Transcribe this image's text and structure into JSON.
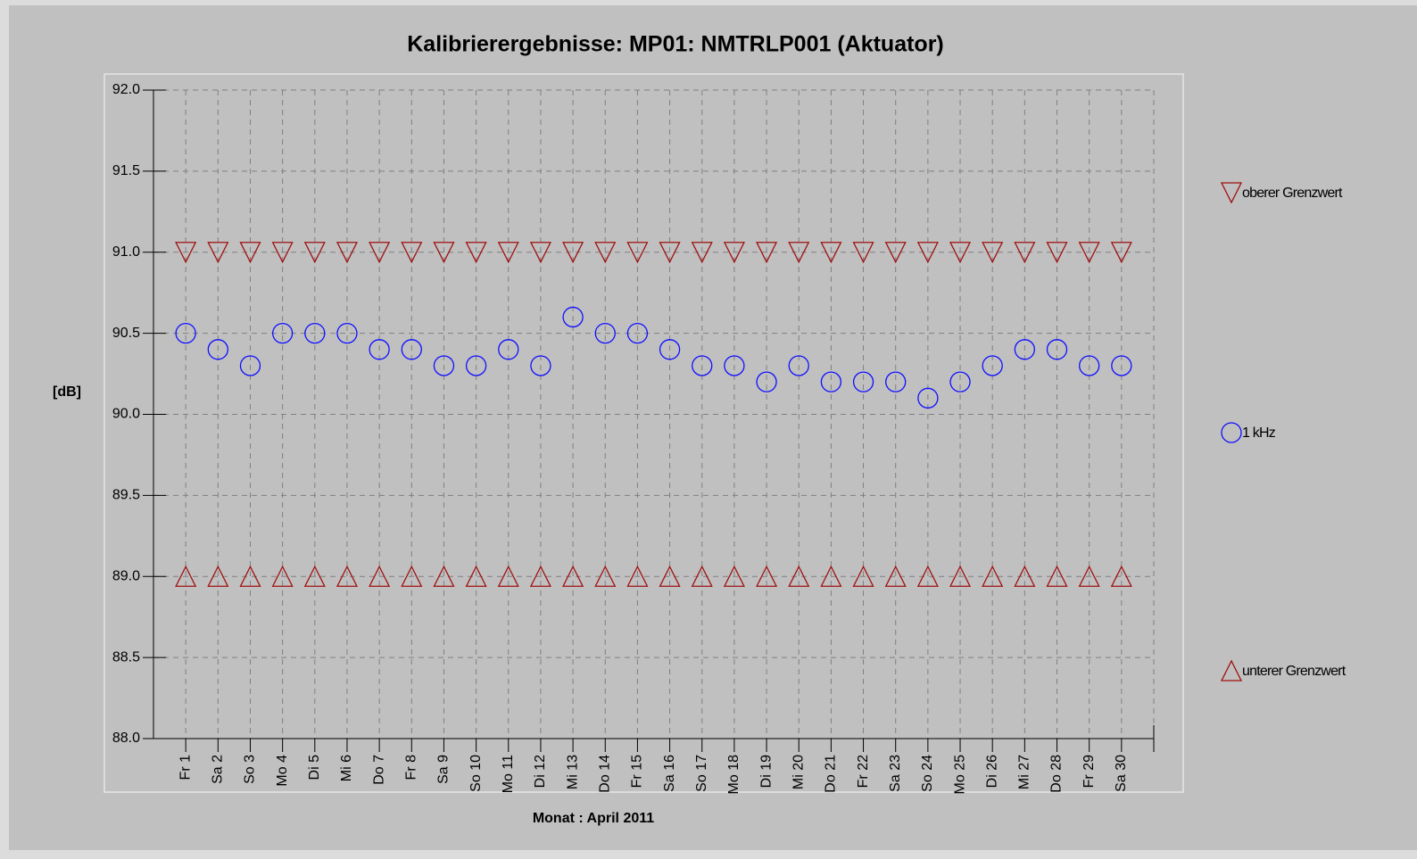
{
  "chart_data": {
    "type": "scatter",
    "title": "Kalibrierergebnisse: MP01: NMTRLP001 (Aktuator)",
    "y_label": "[dB]",
    "x_label": "Monat : April 2011",
    "categories": [
      "Fr 1",
      "Sa 2",
      "So 3",
      "Mo 4",
      "Di 5",
      "Mi 6",
      "Do 7",
      "Fr 8",
      "Sa 9",
      "So 10",
      "Mo 11",
      "Di 12",
      "Mi 13",
      "Do 14",
      "Fr 15",
      "Sa 16",
      "So 17",
      "Mo 18",
      "Di 19",
      "Mi 20",
      "Do 21",
      "Fr 22",
      "Sa 23",
      "So 24",
      "Mo 25",
      "Di 26",
      "Mi 27",
      "Do 28",
      "Fr 29",
      "Sa 30"
    ],
    "series": [
      {
        "name": "oberer Grenzwert",
        "color": "#a01010",
        "marker": "triangle-down",
        "values": [
          91.0,
          91.0,
          91.0,
          91.0,
          91.0,
          91.0,
          91.0,
          91.0,
          91.0,
          91.0,
          91.0,
          91.0,
          91.0,
          91.0,
          91.0,
          91.0,
          91.0,
          91.0,
          91.0,
          91.0,
          91.0,
          91.0,
          91.0,
          91.0,
          91.0,
          91.0,
          91.0,
          91.0,
          91.0,
          91.0
        ]
      },
      {
        "name": "1 kHz",
        "color": "#1010ff",
        "marker": "circle",
        "values": [
          90.5,
          90.4,
          90.3,
          90.5,
          90.5,
          90.5,
          90.4,
          90.4,
          90.3,
          90.3,
          90.4,
          90.3,
          90.6,
          90.5,
          90.5,
          90.4,
          90.3,
          90.3,
          90.2,
          90.3,
          90.2,
          90.2,
          90.2,
          90.1,
          90.2,
          90.3,
          90.4,
          90.4,
          90.3,
          90.3
        ]
      },
      {
        "name": "unterer Grenzwert",
        "color": "#a01010",
        "marker": "triangle-up",
        "values": [
          89.0,
          89.0,
          89.0,
          89.0,
          89.0,
          89.0,
          89.0,
          89.0,
          89.0,
          89.0,
          89.0,
          89.0,
          89.0,
          89.0,
          89.0,
          89.0,
          89.0,
          89.0,
          89.0,
          89.0,
          89.0,
          89.0,
          89.0,
          89.0,
          89.0,
          89.0,
          89.0,
          89.0,
          89.0,
          89.0
        ]
      }
    ],
    "ylim": [
      88.0,
      92.0
    ],
    "yticks": [
      {
        "value": 88,
        "label": "88.0"
      },
      {
        "value": 88.5,
        "label": "88.5"
      },
      {
        "value": 89,
        "label": "89.0"
      },
      {
        "value": 89.5,
        "label": "89.5"
      },
      {
        "value": 90,
        "label": "90.0"
      },
      {
        "value": 90.5,
        "label": "90.5"
      },
      {
        "value": 91,
        "label": "91.0"
      },
      {
        "value": 91.5,
        "label": "91.5"
      },
      {
        "value": 92,
        "label": "92.0"
      }
    ],
    "grid": true,
    "legend": "right"
  }
}
